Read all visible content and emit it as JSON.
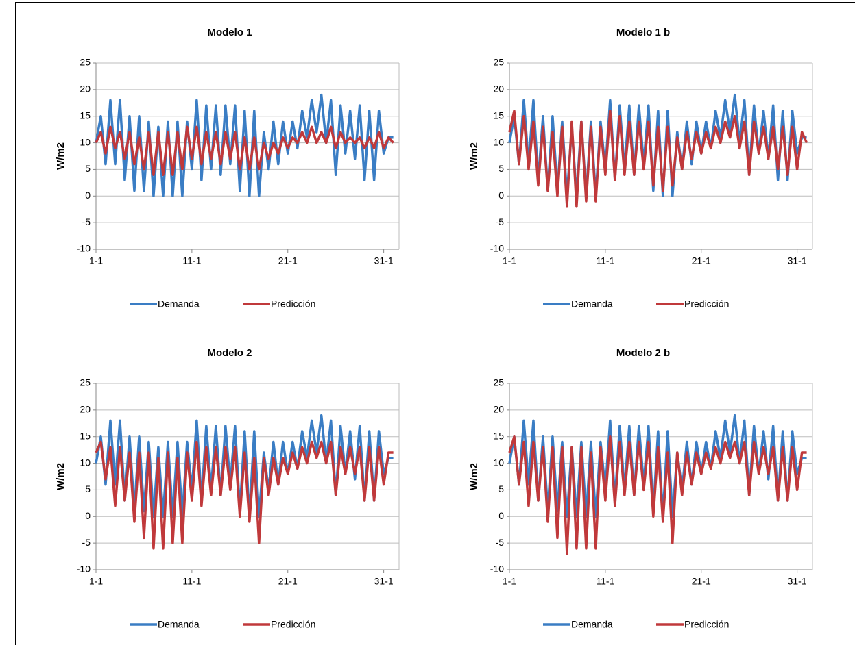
{
  "chart_data": [
    {
      "type": "line",
      "title": "Modelo 1",
      "y_label": "W/m2",
      "x": [
        1,
        1.5,
        2,
        2.5,
        3,
        3.5,
        4,
        4.5,
        5,
        5.5,
        6,
        6.5,
        7,
        7.5,
        8,
        8.5,
        9,
        9.5,
        10,
        10.5,
        11,
        11.5,
        12,
        12.5,
        13,
        13.5,
        14,
        14.5,
        15,
        15.5,
        16,
        16.5,
        17,
        17.5,
        18,
        18.5,
        19,
        19.5,
        20,
        20.5,
        21,
        21.5,
        22,
        22.5,
        23,
        23.5,
        24,
        24.5,
        25,
        25.5,
        26,
        26.5,
        27,
        27.5,
        28,
        28.5,
        29,
        29.5,
        30,
        30.5,
        31,
        31.5,
        32
      ],
      "xlim": [
        1,
        32.6
      ],
      "xticks": [
        {
          "value": 1,
          "label": "1-1"
        },
        {
          "value": 11,
          "label": "11-1"
        },
        {
          "value": 21,
          "label": "21-1"
        },
        {
          "value": 31,
          "label": "31-1"
        }
      ],
      "ylim": [
        -10,
        25
      ],
      "yticks": [
        -10,
        -5,
        0,
        5,
        10,
        15,
        20,
        25
      ],
      "grid": true,
      "legend": "bottom",
      "series": [
        {
          "name": "Demanda",
          "color": "#3a7dc4",
          "values": [
            10,
            15,
            6,
            18,
            6,
            18,
            3,
            15,
            1,
            15,
            1,
            14,
            0,
            13,
            0,
            14,
            0,
            14,
            0,
            14,
            5,
            18,
            3,
            17,
            5,
            17,
            4,
            17,
            6,
            17,
            1,
            16,
            0,
            16,
            0,
            12,
            5,
            14,
            6,
            14,
            8,
            14,
            9,
            16,
            11,
            18,
            12,
            19,
            10,
            18,
            4,
            17,
            8,
            16,
            7,
            17,
            3,
            16,
            3,
            16,
            8,
            11,
            11
          ]
        },
        {
          "name": "Predicción",
          "color": "#c0393b",
          "values": [
            10,
            12,
            8,
            13,
            9,
            12,
            7,
            12,
            6,
            11,
            5,
            12,
            4,
            12,
            4,
            12,
            4,
            12,
            5,
            13,
            7,
            13,
            6,
            12,
            7,
            12,
            6,
            12,
            7,
            12,
            5,
            11,
            5,
            11,
            5,
            10,
            7,
            10,
            8,
            11,
            9,
            11,
            10,
            12,
            10,
            13,
            10,
            12,
            10,
            13,
            9,
            12,
            10,
            11,
            10,
            11,
            9,
            11,
            9,
            12,
            9,
            11,
            10
          ]
        }
      ]
    },
    {
      "type": "line",
      "title": "Modelo 1 b",
      "y_label": "W/m2",
      "x": [
        1,
        1.5,
        2,
        2.5,
        3,
        3.5,
        4,
        4.5,
        5,
        5.5,
        6,
        6.5,
        7,
        7.5,
        8,
        8.5,
        9,
        9.5,
        10,
        10.5,
        11,
        11.5,
        12,
        12.5,
        13,
        13.5,
        14,
        14.5,
        15,
        15.5,
        16,
        16.5,
        17,
        17.5,
        18,
        18.5,
        19,
        19.5,
        20,
        20.5,
        21,
        21.5,
        22,
        22.5,
        23,
        23.5,
        24,
        24.5,
        25,
        25.5,
        26,
        26.5,
        27,
        27.5,
        28,
        28.5,
        29,
        29.5,
        30,
        30.5,
        31,
        31.5,
        32
      ],
      "xlim": [
        1,
        32.6
      ],
      "xticks": [
        {
          "value": 1,
          "label": "1-1"
        },
        {
          "value": 11,
          "label": "11-1"
        },
        {
          "value": 21,
          "label": "21-1"
        },
        {
          "value": 31,
          "label": "31-1"
        }
      ],
      "ylim": [
        -10,
        25
      ],
      "yticks": [
        -10,
        -5,
        0,
        5,
        10,
        15,
        20,
        25
      ],
      "grid": true,
      "legend": "bottom",
      "series": [
        {
          "name": "Demanda",
          "color": "#3a7dc4",
          "values": [
            10,
            15,
            6,
            18,
            6,
            18,
            3,
            15,
            1,
            15,
            1,
            14,
            0,
            13,
            0,
            14,
            0,
            14,
            0,
            14,
            5,
            18,
            3,
            17,
            5,
            17,
            4,
            17,
            6,
            17,
            1,
            16,
            0,
            16,
            0,
            12,
            5,
            14,
            6,
            14,
            8,
            14,
            9,
            16,
            11,
            18,
            12,
            19,
            10,
            18,
            4,
            17,
            8,
            16,
            7,
            17,
            3,
            16,
            3,
            16,
            8,
            11,
            11
          ]
        },
        {
          "name": "Predicción",
          "color": "#c0393b",
          "values": [
            12,
            16,
            6,
            15,
            5,
            14,
            2,
            13,
            1,
            12,
            0,
            13,
            -2,
            14,
            -2,
            14,
            -1,
            13,
            -1,
            13,
            4,
            16,
            3,
            15,
            4,
            14,
            4,
            14,
            5,
            14,
            2,
            13,
            1,
            13,
            2,
            11,
            5,
            12,
            7,
            12,
            8,
            12,
            9,
            13,
            10,
            14,
            11,
            15,
            9,
            14,
            4,
            14,
            8,
            13,
            7,
            13,
            5,
            13,
            4,
            13,
            5,
            12,
            10
          ]
        }
      ]
    },
    {
      "type": "line",
      "title": "Modelo 2",
      "y_label": "W/m2",
      "x": [
        1,
        1.5,
        2,
        2.5,
        3,
        3.5,
        4,
        4.5,
        5,
        5.5,
        6,
        6.5,
        7,
        7.5,
        8,
        8.5,
        9,
        9.5,
        10,
        10.5,
        11,
        11.5,
        12,
        12.5,
        13,
        13.5,
        14,
        14.5,
        15,
        15.5,
        16,
        16.5,
        17,
        17.5,
        18,
        18.5,
        19,
        19.5,
        20,
        20.5,
        21,
        21.5,
        22,
        22.5,
        23,
        23.5,
        24,
        24.5,
        25,
        25.5,
        26,
        26.5,
        27,
        27.5,
        28,
        28.5,
        29,
        29.5,
        30,
        30.5,
        31,
        31.5,
        32
      ],
      "xlim": [
        1,
        32.6
      ],
      "xticks": [
        {
          "value": 1,
          "label": "1-1"
        },
        {
          "value": 11,
          "label": "11-1"
        },
        {
          "value": 21,
          "label": "21-1"
        },
        {
          "value": 31,
          "label": "31-1"
        }
      ],
      "ylim": [
        -10,
        25
      ],
      "yticks": [
        -10,
        -5,
        0,
        5,
        10,
        15,
        20,
        25
      ],
      "grid": true,
      "legend": "bottom",
      "series": [
        {
          "name": "Demanda",
          "color": "#3a7dc4",
          "values": [
            10,
            15,
            6,
            18,
            6,
            18,
            3,
            15,
            1,
            15,
            1,
            14,
            0,
            13,
            0,
            14,
            0,
            14,
            0,
            14,
            5,
            18,
            3,
            17,
            5,
            17,
            4,
            17,
            6,
            17,
            1,
            16,
            0,
            16,
            0,
            12,
            5,
            14,
            6,
            14,
            8,
            14,
            9,
            16,
            11,
            18,
            12,
            19,
            10,
            18,
            4,
            17,
            8,
            16,
            7,
            17,
            3,
            16,
            3,
            16,
            8,
            11,
            11
          ]
        },
        {
          "name": "Predicción",
          "color": "#c0393b",
          "values": [
            12,
            14,
            7,
            13,
            2,
            13,
            3,
            12,
            -1,
            12,
            -4,
            12,
            -6,
            11,
            -6,
            12,
            -5,
            11,
            -5,
            12,
            3,
            14,
            2,
            13,
            4,
            13,
            4,
            13,
            5,
            13,
            0,
            12,
            -1,
            11,
            -5,
            11,
            4,
            11,
            6,
            11,
            8,
            12,
            9,
            13,
            10,
            14,
            11,
            14,
            10,
            14,
            4,
            13,
            8,
            13,
            8,
            13,
            3,
            13,
            3,
            13,
            6,
            12,
            12
          ]
        }
      ]
    },
    {
      "type": "line",
      "title": "Modelo 2 b",
      "y_label": "W/m2",
      "x": [
        1,
        1.5,
        2,
        2.5,
        3,
        3.5,
        4,
        4.5,
        5,
        5.5,
        6,
        6.5,
        7,
        7.5,
        8,
        8.5,
        9,
        9.5,
        10,
        10.5,
        11,
        11.5,
        12,
        12.5,
        13,
        13.5,
        14,
        14.5,
        15,
        15.5,
        16,
        16.5,
        17,
        17.5,
        18,
        18.5,
        19,
        19.5,
        20,
        20.5,
        21,
        21.5,
        22,
        22.5,
        23,
        23.5,
        24,
        24.5,
        25,
        25.5,
        26,
        26.5,
        27,
        27.5,
        28,
        28.5,
        29,
        29.5,
        30,
        30.5,
        31,
        31.5,
        32
      ],
      "xlim": [
        1,
        32.6
      ],
      "xticks": [
        {
          "value": 1,
          "label": "1-1"
        },
        {
          "value": 11,
          "label": "11-1"
        },
        {
          "value": 21,
          "label": "21-1"
        },
        {
          "value": 31,
          "label": "31-1"
        }
      ],
      "ylim": [
        -10,
        25
      ],
      "yticks": [
        -10,
        -5,
        0,
        5,
        10,
        15,
        20,
        25
      ],
      "grid": true,
      "legend": "bottom",
      "series": [
        {
          "name": "Demanda",
          "color": "#3a7dc4",
          "values": [
            10,
            15,
            6,
            18,
            6,
            18,
            3,
            15,
            1,
            15,
            1,
            14,
            0,
            13,
            0,
            14,
            0,
            14,
            0,
            14,
            5,
            18,
            3,
            17,
            5,
            17,
            4,
            17,
            6,
            17,
            1,
            16,
            0,
            16,
            0,
            12,
            5,
            14,
            6,
            14,
            8,
            14,
            9,
            16,
            11,
            18,
            12,
            19,
            10,
            18,
            4,
            17,
            8,
            16,
            7,
            17,
            3,
            16,
            3,
            16,
            8,
            11,
            11
          ]
        },
        {
          "name": "Predicción",
          "color": "#c0393b",
          "values": [
            12,
            15,
            6,
            14,
            2,
            14,
            3,
            13,
            -1,
            13,
            -4,
            13,
            -7,
            13,
            -6,
            13,
            -6,
            12,
            -6,
            13,
            3,
            15,
            2,
            14,
            4,
            14,
            4,
            14,
            5,
            14,
            0,
            13,
            -1,
            12,
            -5,
            12,
            4,
            12,
            6,
            12,
            8,
            12,
            9,
            13,
            10,
            14,
            11,
            14,
            10,
            14,
            4,
            14,
            8,
            13,
            8,
            13,
            3,
            13,
            3,
            13,
            5,
            12,
            12
          ]
        }
      ]
    }
  ]
}
